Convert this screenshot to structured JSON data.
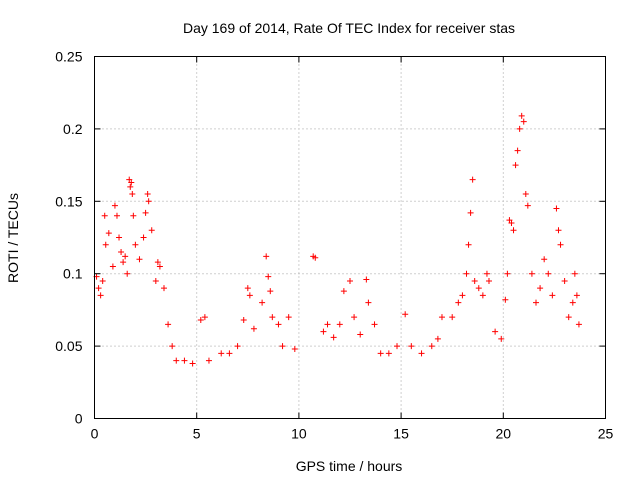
{
  "chart_data": {
    "type": "scatter",
    "title": "Day 169 of 2014, Rate Of TEC Index for receiver stas",
    "xlabel": "GPS time / hours",
    "ylabel": "ROTI / TECUs",
    "xlim": [
      0,
      25
    ],
    "ylim": [
      0,
      0.25
    ],
    "xticks": [
      0,
      5,
      10,
      15,
      20,
      25
    ],
    "xtick_labels": [
      "0",
      "5",
      "10",
      "15",
      "20",
      "25"
    ],
    "yticks": [
      0,
      0.05,
      0.1,
      0.15,
      0.2,
      0.25
    ],
    "ytick_labels": [
      "0",
      "0.05",
      "0.1",
      "0.15",
      "0.2",
      "0.25"
    ],
    "grid": true,
    "marker": "plus",
    "color": "#ff0000",
    "series": [
      {
        "name": "ROTI",
        "points": [
          [
            0.1,
            0.098
          ],
          [
            0.2,
            0.09
          ],
          [
            0.3,
            0.085
          ],
          [
            0.4,
            0.095
          ],
          [
            0.5,
            0.14
          ],
          [
            0.55,
            0.12
          ],
          [
            0.7,
            0.128
          ],
          [
            0.9,
            0.105
          ],
          [
            1.0,
            0.147
          ],
          [
            1.1,
            0.14
          ],
          [
            1.2,
            0.125
          ],
          [
            1.3,
            0.115
          ],
          [
            1.4,
            0.108
          ],
          [
            1.5,
            0.112
          ],
          [
            1.6,
            0.1
          ],
          [
            1.7,
            0.165
          ],
          [
            1.75,
            0.16
          ],
          [
            1.8,
            0.163
          ],
          [
            1.85,
            0.155
          ],
          [
            1.9,
            0.14
          ],
          [
            2.0,
            0.12
          ],
          [
            2.2,
            0.11
          ],
          [
            2.4,
            0.125
          ],
          [
            2.5,
            0.142
          ],
          [
            2.6,
            0.155
          ],
          [
            2.65,
            0.15
          ],
          [
            2.8,
            0.13
          ],
          [
            3.0,
            0.095
          ],
          [
            3.1,
            0.108
          ],
          [
            3.2,
            0.105
          ],
          [
            3.4,
            0.09
          ],
          [
            3.6,
            0.065
          ],
          [
            3.8,
            0.05
          ],
          [
            4.0,
            0.04
          ],
          [
            4.4,
            0.04
          ],
          [
            4.8,
            0.038
          ],
          [
            5.2,
            0.068
          ],
          [
            5.4,
            0.07
          ],
          [
            5.6,
            0.04
          ],
          [
            6.2,
            0.045
          ],
          [
            6.6,
            0.045
          ],
          [
            7.0,
            0.05
          ],
          [
            7.3,
            0.068
          ],
          [
            7.5,
            0.09
          ],
          [
            7.6,
            0.085
          ],
          [
            7.8,
            0.062
          ],
          [
            8.2,
            0.08
          ],
          [
            8.4,
            0.112
          ],
          [
            8.5,
            0.098
          ],
          [
            8.6,
            0.088
          ],
          [
            8.7,
            0.07
          ],
          [
            9.0,
            0.065
          ],
          [
            9.2,
            0.05
          ],
          [
            9.5,
            0.07
          ],
          [
            9.8,
            0.048
          ],
          [
            10.7,
            0.112
          ],
          [
            10.8,
            0.111
          ],
          [
            11.2,
            0.06
          ],
          [
            11.4,
            0.065
          ],
          [
            11.7,
            0.056
          ],
          [
            12.0,
            0.065
          ],
          [
            12.2,
            0.088
          ],
          [
            12.5,
            0.095
          ],
          [
            12.7,
            0.07
          ],
          [
            13.0,
            0.058
          ],
          [
            13.3,
            0.096
          ],
          [
            13.4,
            0.08
          ],
          [
            13.7,
            0.065
          ],
          [
            14.0,
            0.045
          ],
          [
            14.4,
            0.045
          ],
          [
            14.8,
            0.05
          ],
          [
            15.2,
            0.072
          ],
          [
            15.5,
            0.05
          ],
          [
            16.0,
            0.045
          ],
          [
            16.5,
            0.05
          ],
          [
            16.8,
            0.055
          ],
          [
            17.0,
            0.07
          ],
          [
            17.5,
            0.07
          ],
          [
            17.8,
            0.08
          ],
          [
            18.0,
            0.085
          ],
          [
            18.2,
            0.1
          ],
          [
            18.3,
            0.12
          ],
          [
            18.4,
            0.142
          ],
          [
            18.5,
            0.165
          ],
          [
            18.6,
            0.095
          ],
          [
            18.8,
            0.09
          ],
          [
            19.0,
            0.085
          ],
          [
            19.2,
            0.1
          ],
          [
            19.3,
            0.095
          ],
          [
            19.6,
            0.06
          ],
          [
            19.9,
            0.055
          ],
          [
            20.1,
            0.082
          ],
          [
            20.2,
            0.1
          ],
          [
            20.3,
            0.137
          ],
          [
            20.4,
            0.135
          ],
          [
            20.5,
            0.13
          ],
          [
            20.6,
            0.175
          ],
          [
            20.7,
            0.185
          ],
          [
            20.8,
            0.2
          ],
          [
            20.9,
            0.209
          ],
          [
            21.0,
            0.205
          ],
          [
            21.1,
            0.155
          ],
          [
            21.2,
            0.147
          ],
          [
            21.4,
            0.1
          ],
          [
            21.6,
            0.08
          ],
          [
            21.8,
            0.09
          ],
          [
            22.0,
            0.11
          ],
          [
            22.2,
            0.1
          ],
          [
            22.4,
            0.085
          ],
          [
            22.6,
            0.145
          ],
          [
            22.7,
            0.13
          ],
          [
            22.8,
            0.12
          ],
          [
            23.0,
            0.095
          ],
          [
            23.2,
            0.07
          ],
          [
            23.4,
            0.08
          ],
          [
            23.5,
            0.1
          ],
          [
            23.6,
            0.085
          ],
          [
            23.7,
            0.065
          ]
        ]
      }
    ]
  }
}
